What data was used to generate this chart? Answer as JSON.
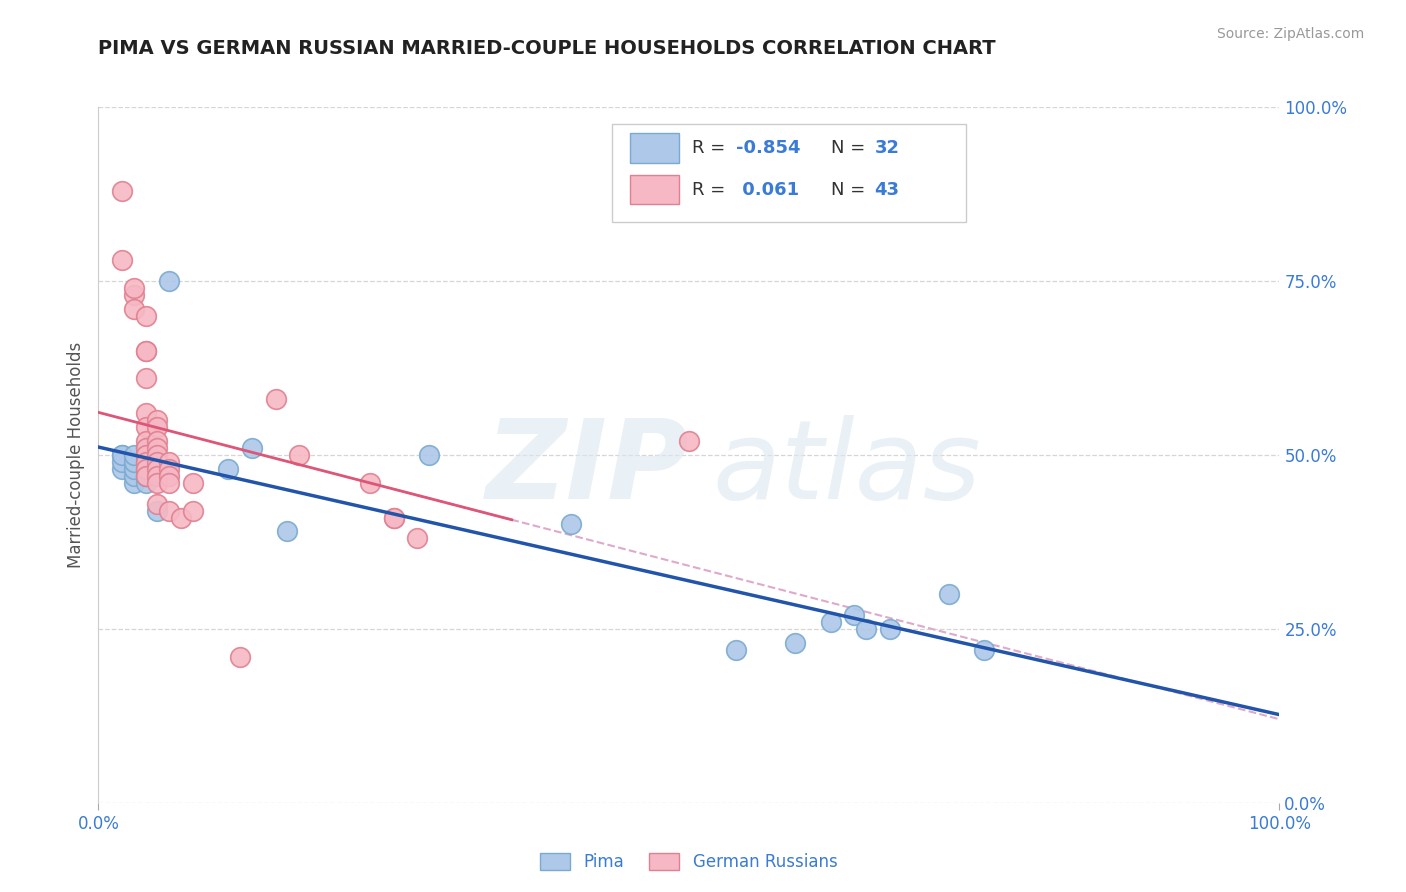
{
  "title": "PIMA VS GERMAN RUSSIAN MARRIED-COUPLE HOUSEHOLDS CORRELATION CHART",
  "source": "Source: ZipAtlas.com",
  "ylabel": "Married-couple Households",
  "xlim": [
    0.0,
    1.0
  ],
  "ylim": [
    0.0,
    1.0
  ],
  "ytick_positions": [
    0.0,
    0.25,
    0.5,
    0.75,
    1.0
  ],
  "ytick_labels": [
    "0.0%",
    "25.0%",
    "50.0%",
    "75.0%",
    "100.0%"
  ],
  "grid_color": "#cccccc",
  "background_color": "#ffffff",
  "pima_color": "#adc8e8",
  "pima_edge_color": "#7aaad0",
  "german_color": "#f5b8c4",
  "german_edge_color": "#e08090",
  "line1_color": "#2255aa",
  "line2_solid_color": "#dd5577",
  "line2_dash_color": "#ddaacc",
  "legend_R1": "-0.854",
  "legend_N1": "32",
  "legend_R2": "0.061",
  "legend_N2": "43",
  "pima_x": [
    0.02,
    0.06,
    0.11,
    0.13,
    0.02,
    0.02,
    0.02,
    0.03,
    0.03,
    0.03,
    0.03,
    0.03,
    0.04,
    0.04,
    0.04,
    0.04,
    0.04,
    0.04,
    0.04,
    0.04,
    0.05,
    0.16,
    0.28,
    0.4,
    0.54,
    0.59,
    0.62,
    0.64,
    0.65,
    0.67,
    0.72,
    0.75
  ],
  "pima_y": [
    0.5,
    0.75,
    0.48,
    0.51,
    0.48,
    0.49,
    0.5,
    0.46,
    0.47,
    0.48,
    0.49,
    0.5,
    0.46,
    0.47,
    0.48,
    0.49,
    0.5,
    0.51,
    0.47,
    0.5,
    0.42,
    0.39,
    0.5,
    0.4,
    0.22,
    0.23,
    0.26,
    0.27,
    0.25,
    0.25,
    0.3,
    0.22
  ],
  "german_x": [
    0.02,
    0.02,
    0.03,
    0.03,
    0.03,
    0.04,
    0.04,
    0.04,
    0.04,
    0.04,
    0.04,
    0.04,
    0.04,
    0.04,
    0.04,
    0.04,
    0.04,
    0.05,
    0.05,
    0.05,
    0.05,
    0.05,
    0.05,
    0.05,
    0.05,
    0.05,
    0.05,
    0.06,
    0.06,
    0.06,
    0.06,
    0.06,
    0.07,
    0.08,
    0.08,
    0.12,
    0.15,
    0.17,
    0.23,
    0.25,
    0.25,
    0.27,
    0.5
  ],
  "german_y": [
    0.88,
    0.78,
    0.73,
    0.74,
    0.71,
    0.7,
    0.65,
    0.65,
    0.61,
    0.56,
    0.54,
    0.52,
    0.51,
    0.5,
    0.49,
    0.48,
    0.47,
    0.55,
    0.54,
    0.52,
    0.51,
    0.5,
    0.49,
    0.48,
    0.47,
    0.46,
    0.43,
    0.49,
    0.48,
    0.47,
    0.46,
    0.42,
    0.41,
    0.46,
    0.42,
    0.21,
    0.58,
    0.5,
    0.46,
    0.41,
    0.41,
    0.38,
    0.52
  ]
}
